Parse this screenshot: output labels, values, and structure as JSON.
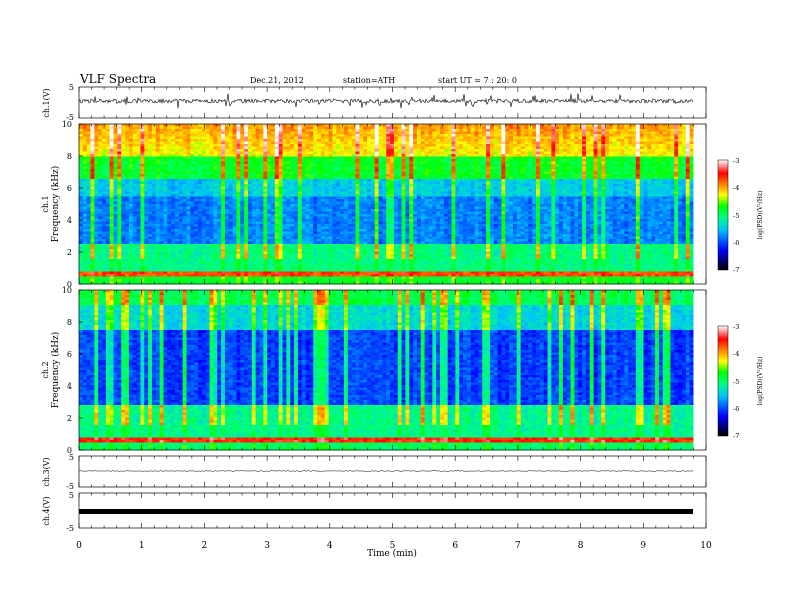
{
  "header": {
    "title": "VLF  Spectra",
    "date": "Dec.21, 2012",
    "station": "station=ATH",
    "start": "start  UT  =   7 : 20: 0"
  },
  "colors": {
    "colorbar": [
      "#000000",
      "#0000ff",
      "#00c0ff",
      "#00ff80",
      "#00ff00",
      "#ffff00",
      "#ff8000",
      "#ff0000",
      "#ffffff"
    ]
  },
  "chart_data": [
    {
      "type": "line",
      "panel": "ch1-waveform",
      "ylabel": "ch.1(V)",
      "yticks": [
        "5",
        "-5"
      ],
      "ylim": [
        -5,
        5
      ],
      "xlim": [
        0,
        10
      ]
    },
    {
      "type": "heatmap",
      "panel": "ch1-spectrogram",
      "ylabel": "ch.1\nFrequency  (kHz)",
      "ylabel_channel": "ch.1",
      "ylabel_quantity": "Frequency  (kHz)",
      "ylim": [
        0,
        10
      ],
      "yticks": [
        "0",
        "2",
        "4",
        "6",
        "8",
        "10"
      ],
      "xlim": [
        0,
        10
      ],
      "data_end": 9.8,
      "colorbar": {
        "label": "log(PSD)(V²/Hz)",
        "range": [
          -7,
          -3
        ],
        "ticks": [
          "-3",
          "-4",
          "-5",
          "-6",
          "-7"
        ]
      }
    },
    {
      "type": "heatmap",
      "panel": "ch2-spectrogram",
      "ylabel_channel": "ch.2",
      "ylabel_quantity": "Frequency  (kHz)",
      "ylim": [
        0,
        10
      ],
      "yticks": [
        "0",
        "2",
        "4",
        "6",
        "8",
        "10"
      ],
      "xlim": [
        0,
        10
      ],
      "data_end": 9.8,
      "colorbar": {
        "label": "log(PSD)(V²/Hz)",
        "range": [
          -7,
          -3
        ],
        "ticks": [
          "-3",
          "-4",
          "-5",
          "-6",
          "-7"
        ]
      }
    },
    {
      "type": "line",
      "panel": "ch3-waveform",
      "ylabel": "ch.3(V)",
      "yticks": [
        "5",
        "-5"
      ],
      "ylim": [
        -5,
        5
      ],
      "xlim": [
        0,
        10
      ]
    },
    {
      "type": "line",
      "panel": "ch4-waveform",
      "ylabel": "ch.4(V)",
      "yticks": [
        "5",
        "-5"
      ],
      "ylim": [
        -5,
        5
      ],
      "xlim": [
        0,
        10
      ],
      "xlabel": "Time  (min)",
      "xticks": [
        "0",
        "1",
        "2",
        "3",
        "4",
        "5",
        "6",
        "7",
        "8",
        "9",
        "10"
      ]
    }
  ]
}
